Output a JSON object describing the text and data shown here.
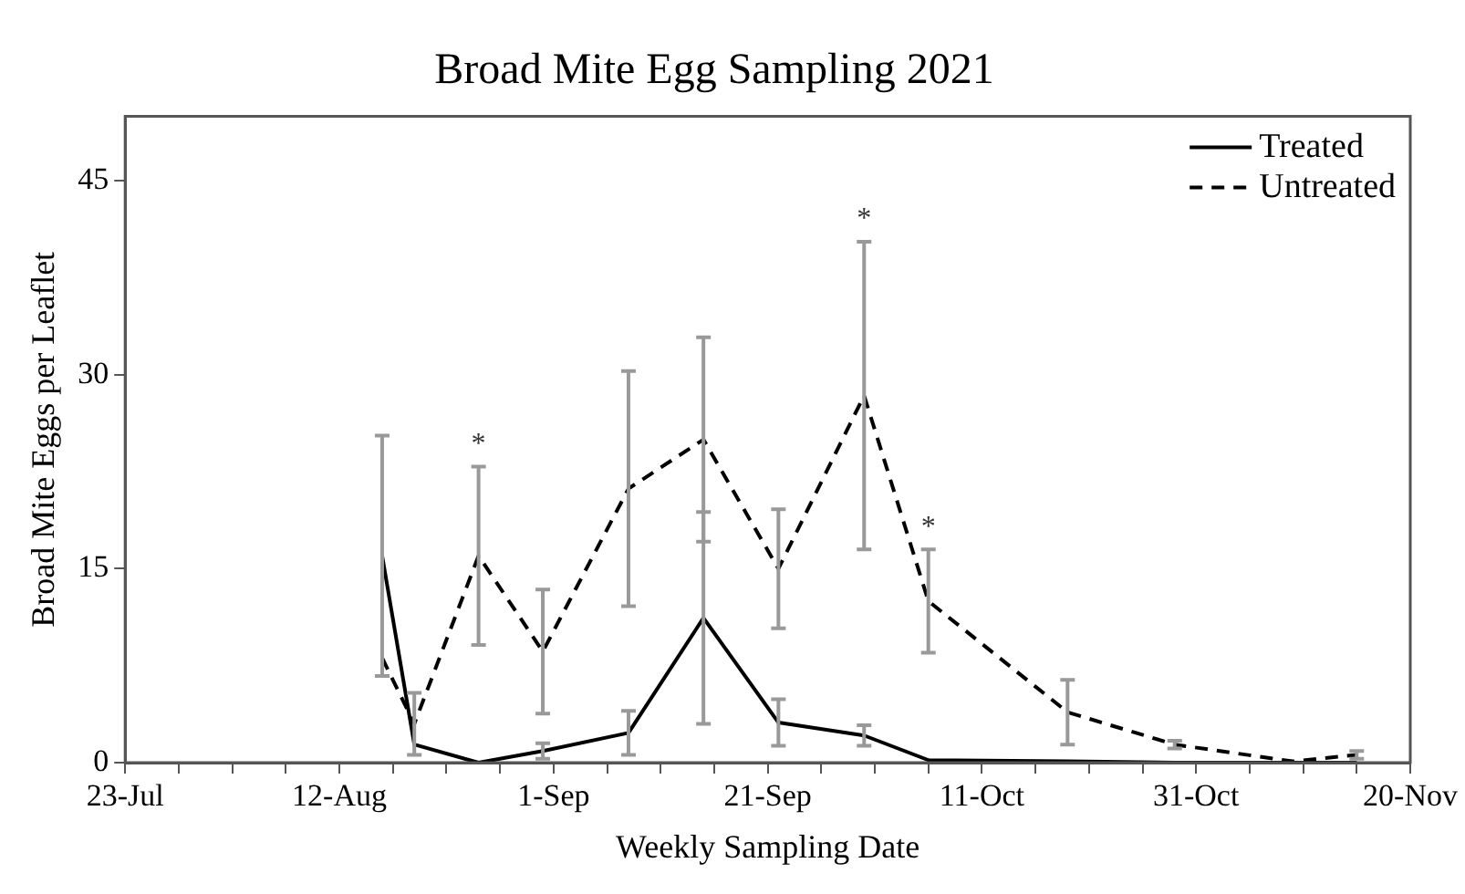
{
  "chart_data": {
    "type": "line",
    "title": "Broad Mite Egg Sampling 2021",
    "xlabel": "Weekly Sampling Date",
    "ylabel": "Broad Mite Eggs per Leaflet",
    "x": [
      "--08-16",
      "--08-19",
      "--08-25",
      "--08-31",
      "--09-08",
      "--09-15",
      "--09-22",
      "--09-30",
      "--10-06",
      "--10-19",
      "--10-29",
      "--11-09",
      "--11-15"
    ],
    "series": [
      {
        "name": "Treated",
        "color": "#000000",
        "line_style": "solid",
        "values": [
          16,
          1.4,
          0,
          0.9,
          2.3,
          11.2,
          3.1,
          2.1,
          0.2,
          0.1,
          0,
          0,
          0
        ],
        "errors": [
          9.3,
          null,
          null,
          0.6,
          1.7,
          8.2,
          1.8,
          0.8,
          null,
          null,
          null,
          null,
          null
        ]
      },
      {
        "name": "Untreated",
        "color": "#000000",
        "line_style": "dashed",
        "values": [
          8.1,
          3,
          16,
          8.6,
          21.2,
          25,
          15,
          28.4,
          12.5,
          3.9,
          1.4,
          0.1,
          0.6
        ],
        "errors": [
          null,
          2.4,
          6.9,
          4.8,
          9.1,
          7.9,
          4.6,
          11.9,
          4,
          2.5,
          0.3,
          null,
          [
            0.3,
            0.9
          ]
        ]
      }
    ],
    "xlim": [
      "--07-23",
      "--11-20"
    ],
    "xticks": [
      {
        "value": "--07-23",
        "label": "23-Jul"
      },
      {
        "value": "--07-28",
        "label": null
      },
      {
        "value": "--08-02",
        "label": null
      },
      {
        "value": "--08-07",
        "label": null
      },
      {
        "value": "--08-12",
        "label": "12-Aug"
      },
      {
        "value": "--08-17",
        "label": null
      },
      {
        "value": "--08-22",
        "label": null
      },
      {
        "value": "--08-27",
        "label": null
      },
      {
        "value": "--09-01",
        "label": "1-Sep"
      },
      {
        "value": "--09-06",
        "label": null
      },
      {
        "value": "--09-11",
        "label": null
      },
      {
        "value": "--09-16",
        "label": null
      },
      {
        "value": "--09-21",
        "label": "21-Sep"
      },
      {
        "value": "--09-26",
        "label": null
      },
      {
        "value": "--10-01",
        "label": null
      },
      {
        "value": "--10-06",
        "label": null
      },
      {
        "value": "--10-11",
        "label": "11-Oct"
      },
      {
        "value": "--10-16",
        "label": null
      },
      {
        "value": "--10-21",
        "label": null
      },
      {
        "value": "--10-26",
        "label": null
      },
      {
        "value": "--10-31",
        "label": "31-Oct"
      },
      {
        "value": "--11-05",
        "label": null
      },
      {
        "value": "--11-10",
        "label": null
      },
      {
        "value": "--11-15",
        "label": null
      },
      {
        "value": "--11-20",
        "label": "20-Nov"
      }
    ],
    "ylim": [
      0,
      50
    ],
    "yticks": [
      0,
      15,
      30,
      45
    ],
    "annotations": [
      {
        "text": "*",
        "x": "--08-25",
        "y": 22.9
      },
      {
        "text": "*",
        "x": "--09-30",
        "y": 40.3
      },
      {
        "text": "*",
        "x": "--10-06",
        "y": 16.5
      }
    ],
    "legend": "top right",
    "grid": false,
    "marker": "none"
  }
}
